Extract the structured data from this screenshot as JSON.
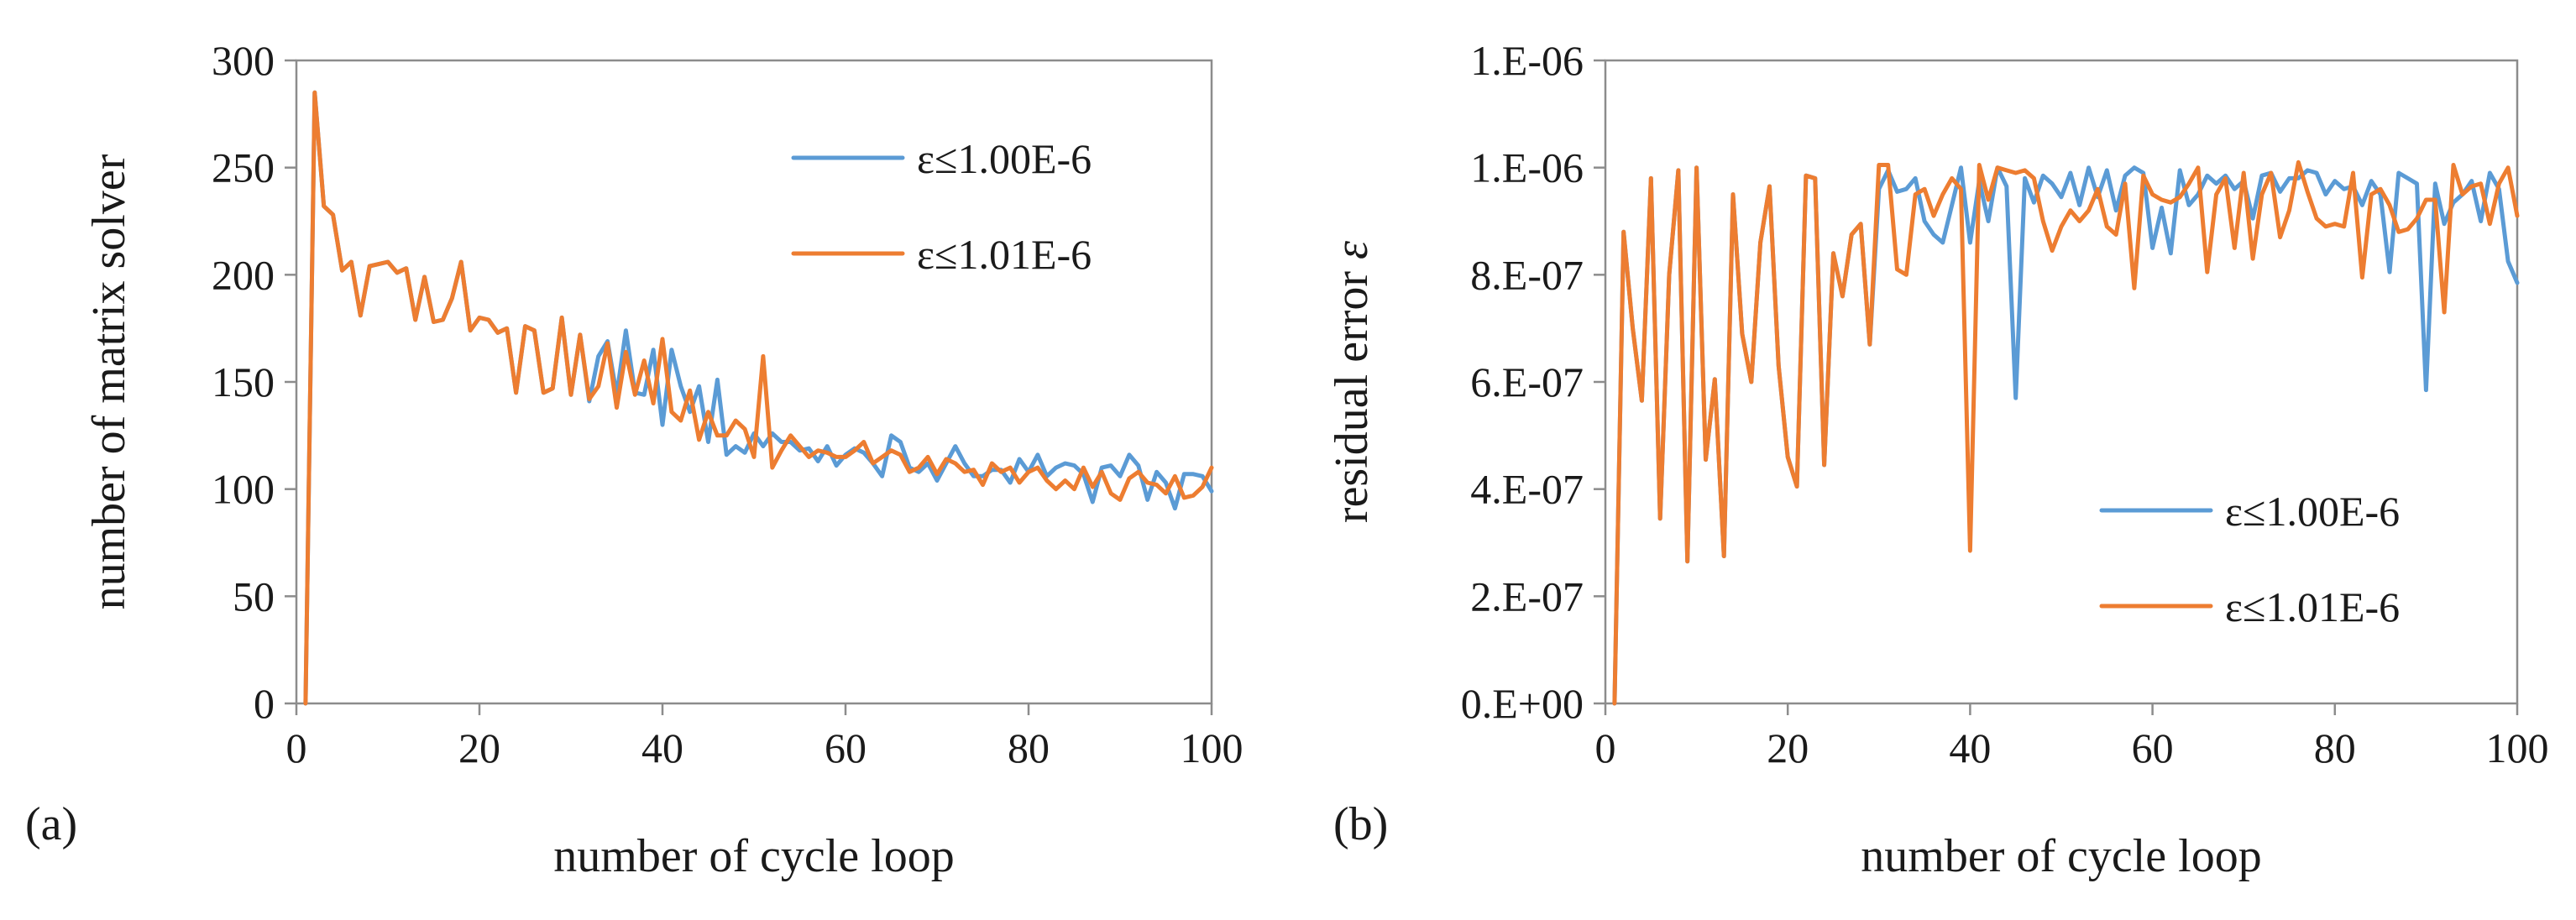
{
  "colors": {
    "blue": "#5B9BD5",
    "orange": "#ED7D31"
  },
  "panel_labels": [
    "(a)",
    "(b)"
  ],
  "chart_data": [
    {
      "type": "line",
      "panel": "(a)",
      "title": "",
      "xlabel": "number of cycle loop",
      "ylabel": "number of matrix solver",
      "xlim": [
        0,
        100
      ],
      "ylim": [
        0,
        300
      ],
      "xticks": [
        0,
        20,
        40,
        60,
        80,
        100
      ],
      "yticks": [
        0,
        50,
        100,
        150,
        200,
        250,
        300
      ],
      "ytick_labels": [
        "0",
        "50",
        "100",
        "150",
        "200",
        "250",
        "300"
      ],
      "grid": false,
      "legend_position": "top-right",
      "series": [
        {
          "name": "ε≤1.00E-6",
          "color": "#5B9BD5",
          "x": [
            1,
            2,
            3,
            4,
            5,
            6,
            7,
            8,
            9,
            10,
            11,
            12,
            13,
            14,
            15,
            16,
            17,
            18,
            19,
            20,
            21,
            22,
            23,
            24,
            25,
            26,
            27,
            28,
            29,
            30,
            31,
            32,
            33,
            34,
            35,
            36,
            37,
            38,
            39,
            40,
            41,
            42,
            43,
            44,
            45,
            46,
            47,
            48,
            49,
            50,
            51,
            52,
            53,
            54,
            55,
            56,
            57,
            58,
            59,
            60,
            61,
            62,
            63,
            64,
            65,
            66,
            67,
            68,
            69,
            70,
            71,
            72,
            73,
            74,
            75,
            76,
            77,
            78,
            79,
            80,
            81,
            82,
            83,
            84,
            85,
            86,
            87,
            88,
            89,
            90,
            91,
            92,
            93,
            94,
            95,
            96,
            97,
            98,
            99,
            100
          ],
          "values": [
            0,
            285,
            232,
            228,
            202,
            206,
            181,
            204,
            205,
            206,
            201,
            203,
            179,
            199,
            178,
            179,
            189,
            206,
            174,
            180,
            179,
            173,
            175,
            145,
            176,
            174,
            145,
            147,
            180,
            144,
            172,
            141,
            162,
            169,
            144,
            174,
            145,
            144,
            165,
            130,
            165,
            148,
            136,
            148,
            122,
            151,
            116,
            120,
            117,
            126,
            120,
            126,
            122,
            122,
            118,
            119,
            113,
            120,
            111,
            116,
            119,
            117,
            112,
            106,
            125,
            122,
            110,
            108,
            112,
            104,
            112,
            120,
            112,
            106,
            106,
            109,
            109,
            103,
            114,
            108,
            116,
            106,
            110,
            112,
            111,
            107,
            94,
            110,
            111,
            106,
            116,
            111,
            95,
            108,
            103,
            91,
            107,
            107,
            106,
            99
          ]
        },
        {
          "name": "ε≤1.01E-6",
          "color": "#ED7D31",
          "x": [
            1,
            2,
            3,
            4,
            5,
            6,
            7,
            8,
            9,
            10,
            11,
            12,
            13,
            14,
            15,
            16,
            17,
            18,
            19,
            20,
            21,
            22,
            23,
            24,
            25,
            26,
            27,
            28,
            29,
            30,
            31,
            32,
            33,
            34,
            35,
            36,
            37,
            38,
            39,
            40,
            41,
            42,
            43,
            44,
            45,
            46,
            47,
            48,
            49,
            50,
            51,
            52,
            53,
            54,
            55,
            56,
            57,
            58,
            59,
            60,
            61,
            62,
            63,
            64,
            65,
            66,
            67,
            68,
            69,
            70,
            71,
            72,
            73,
            74,
            75,
            76,
            77,
            78,
            79,
            80,
            81,
            82,
            83,
            84,
            85,
            86,
            87,
            88,
            89,
            90,
            91,
            92,
            93,
            94,
            95,
            96,
            97,
            98,
            99,
            100
          ],
          "values": [
            0,
            285,
            232,
            228,
            202,
            206,
            181,
            204,
            205,
            206,
            201,
            203,
            179,
            199,
            178,
            179,
            189,
            206,
            174,
            180,
            179,
            173,
            175,
            145,
            176,
            174,
            145,
            147,
            180,
            144,
            172,
            142,
            148,
            168,
            138,
            164,
            144,
            160,
            140,
            170,
            136,
            132,
            146,
            123,
            136,
            125,
            125,
            132,
            128,
            115,
            162,
            110,
            118,
            125,
            120,
            115,
            118,
            117,
            115,
            115,
            118,
            122,
            112,
            115,
            118,
            116,
            108,
            110,
            115,
            107,
            114,
            112,
            108,
            109,
            102,
            112,
            108,
            110,
            103,
            108,
            110,
            104,
            100,
            104,
            100,
            110,
            101,
            108,
            98,
            95,
            105,
            108,
            103,
            102,
            98,
            106,
            96,
            97,
            101,
            110
          ]
        }
      ]
    },
    {
      "type": "line",
      "panel": "(b)",
      "title": "",
      "xlabel": "number of cycle loop",
      "ylabel": "residual error ",
      "ylabel_symbol": "ε",
      "xlim": [
        0,
        100
      ],
      "ylim": [
        0,
        1.2e-06
      ],
      "xticks": [
        0,
        20,
        40,
        60,
        80,
        100
      ],
      "yticks": [
        0,
        2e-07,
        4e-07,
        6e-07,
        8e-07,
        1e-06,
        1.2e-06
      ],
      "ytick_labels": [
        "0.E+00",
        "2.E-07",
        "4.E-07",
        "6.E-07",
        "8.E-07",
        "1.E-06",
        "1.E-06"
      ],
      "grid": false,
      "legend_position": "bottom-right",
      "series": [
        {
          "name": "ε≤1.00E-6",
          "color": "#5B9BD5",
          "x": [
            1,
            2,
            3,
            4,
            5,
            6,
            7,
            8,
            9,
            10,
            11,
            12,
            13,
            14,
            15,
            16,
            17,
            18,
            19,
            20,
            21,
            22,
            23,
            24,
            25,
            26,
            27,
            28,
            29,
            30,
            31,
            32,
            33,
            34,
            35,
            36,
            37,
            38,
            39,
            40,
            41,
            42,
            43,
            44,
            45,
            46,
            47,
            48,
            49,
            50,
            51,
            52,
            53,
            54,
            55,
            56,
            57,
            58,
            59,
            60,
            61,
            62,
            63,
            64,
            65,
            66,
            67,
            68,
            69,
            70,
            71,
            72,
            73,
            74,
            75,
            76,
            77,
            78,
            79,
            80,
            81,
            82,
            83,
            84,
            85,
            86,
            87,
            88,
            89,
            90,
            91,
            92,
            93,
            94,
            95,
            96,
            97,
            98,
            99,
            100
          ],
          "values": [
            0,
            8.8e-07,
            7e-07,
            5.65e-07,
            9.8e-07,
            3.45e-07,
            8e-07,
            9.95e-07,
            2.65e-07,
            1e-06,
            4.55e-07,
            6.05e-07,
            2.75e-07,
            9.5e-07,
            6.9e-07,
            6e-07,
            8.6e-07,
            9.65e-07,
            6.3e-07,
            4.6e-07,
            4.05e-07,
            9.85e-07,
            9.8e-07,
            4.45e-07,
            8.4e-07,
            7.6e-07,
            8.75e-07,
            8.95e-07,
            6.7e-07,
            9.6e-07,
            9.95e-07,
            9.55e-07,
            9.6e-07,
            9.8e-07,
            9e-07,
            8.75e-07,
            8.6e-07,
            9.3e-07,
            1e-06,
            8.6e-07,
            9.75e-07,
            9e-07,
            1e-06,
            9.65e-07,
            5.7e-07,
            9.8e-07,
            9.35e-07,
            9.85e-07,
            9.7e-07,
            9.45e-07,
            9.9e-07,
            9.3e-07,
            1e-06,
            9.45e-07,
            9.95e-07,
            9.2e-07,
            9.85e-07,
            1e-06,
            9.9e-07,
            8.5e-07,
            9.25e-07,
            8.4e-07,
            9.95e-07,
            9.3e-07,
            9.5e-07,
            9.85e-07,
            9.7e-07,
            9.85e-07,
            9.6e-07,
            9.75e-07,
            9.05e-07,
            9.85e-07,
            9.9e-07,
            9.55e-07,
            9.8e-07,
            9.8e-07,
            9.95e-07,
            9.9e-07,
            9.5e-07,
            9.75e-07,
            9.6e-07,
            9.65e-07,
            9.3e-07,
            9.75e-07,
            9.5e-07,
            8.05e-07,
            9.9e-07,
            9.8e-07,
            9.7e-07,
            5.85e-07,
            9.7e-07,
            8.95e-07,
            9.35e-07,
            9.5e-07,
            9.75e-07,
            9e-07,
            9.9e-07,
            9.6e-07,
            8.25e-07,
            7.85e-07
          ]
        },
        {
          "name": "ε≤1.01E-6",
          "color": "#ED7D31",
          "x": [
            1,
            2,
            3,
            4,
            5,
            6,
            7,
            8,
            9,
            10,
            11,
            12,
            13,
            14,
            15,
            16,
            17,
            18,
            19,
            20,
            21,
            22,
            23,
            24,
            25,
            26,
            27,
            28,
            29,
            30,
            31,
            32,
            33,
            34,
            35,
            36,
            37,
            38,
            39,
            40,
            41,
            42,
            43,
            44,
            45,
            46,
            47,
            48,
            49,
            50,
            51,
            52,
            53,
            54,
            55,
            56,
            57,
            58,
            59,
            60,
            61,
            62,
            63,
            64,
            65,
            66,
            67,
            68,
            69,
            70,
            71,
            72,
            73,
            74,
            75,
            76,
            77,
            78,
            79,
            80,
            81,
            82,
            83,
            84,
            85,
            86,
            87,
            88,
            89,
            90,
            91,
            92,
            93,
            94,
            95,
            96,
            97,
            98,
            99,
            100
          ],
          "values": [
            0,
            8.8e-07,
            7e-07,
            5.65e-07,
            9.8e-07,
            3.45e-07,
            8e-07,
            9.95e-07,
            2.65e-07,
            1e-06,
            4.55e-07,
            6.05e-07,
            2.75e-07,
            9.5e-07,
            6.9e-07,
            6e-07,
            8.6e-07,
            9.65e-07,
            6.3e-07,
            4.6e-07,
            4.05e-07,
            9.85e-07,
            9.8e-07,
            4.45e-07,
            8.4e-07,
            7.6e-07,
            8.75e-07,
            8.95e-07,
            6.7e-07,
            1.005e-06,
            1.005e-06,
            8.1e-07,
            8e-07,
            9.5e-07,
            9.6e-07,
            9.1e-07,
            9.5e-07,
            9.8e-07,
            9.6e-07,
            2.85e-07,
            1.005e-06,
            9.4e-07,
            1e-06,
            9.95e-07,
            9.9e-07,
            9.95e-07,
            9.8e-07,
            9e-07,
            8.45e-07,
            8.9e-07,
            9.2e-07,
            9e-07,
            9.2e-07,
            9.6e-07,
            8.9e-07,
            8.75e-07,
            9.7e-07,
            7.75e-07,
            9.85e-07,
            9.5e-07,
            9.4e-07,
            9.35e-07,
            9.45e-07,
            9.7e-07,
            1e-06,
            8.05e-07,
            9.5e-07,
            9.8e-07,
            8.5e-07,
            9.9e-07,
            8.3e-07,
            9.5e-07,
            9.9e-07,
            8.7e-07,
            9.2e-07,
            1.01e-06,
            9.55e-07,
            9.05e-07,
            8.9e-07,
            8.95e-07,
            8.9e-07,
            9.9e-07,
            7.95e-07,
            9.5e-07,
            9.6e-07,
            9.3e-07,
            8.8e-07,
            8.85e-07,
            9.05e-07,
            9.4e-07,
            9.4e-07,
            7.3e-07,
            1.005e-06,
            9.5e-07,
            9.65e-07,
            9.7e-07,
            8.95e-07,
            9.7e-07,
            1e-06,
            9.1e-07
          ]
        }
      ]
    }
  ]
}
